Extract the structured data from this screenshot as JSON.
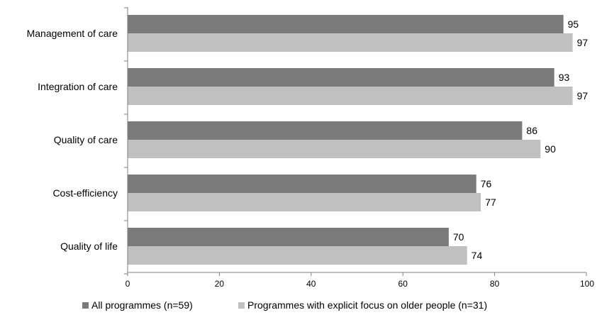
{
  "chart_data": {
    "type": "bar",
    "orientation": "horizontal",
    "categories": [
      "Management of care",
      "Integration of care",
      "Quality of care",
      "Cost-efficiency",
      "Quality of life"
    ],
    "series": [
      {
        "name": "All programmes (n=59)",
        "values": [
          95,
          93,
          86,
          76,
          70
        ],
        "color": "#7a7a7a"
      },
      {
        "name": "Programmes with explicit focus on older people (n=31)",
        "values": [
          97,
          97,
          90,
          77,
          74
        ],
        "color": "#c0c0c0"
      }
    ],
    "xlim": [
      0,
      100
    ],
    "xticks": [
      0,
      20,
      40,
      60,
      80,
      100
    ],
    "grid": false,
    "data_labels": true,
    "legend_position": "bottom",
    "title": "",
    "xlabel": "",
    "ylabel": ""
  }
}
